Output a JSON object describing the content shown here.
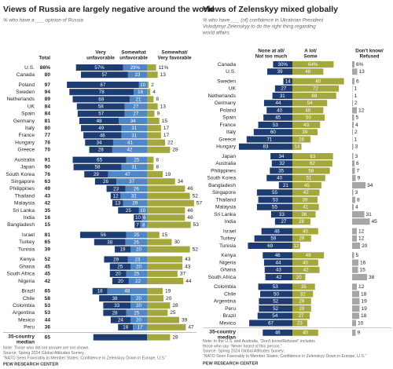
{
  "chart_data": [
    {
      "type": "diverging_bar",
      "title": "Views of Russia are largely negative around the world",
      "subtitle": "% who have a ___ opinion of Russia",
      "column_headers": {
        "total": "Total",
        "very_unfavorable": [
          "Very",
          "unfavorable"
        ],
        "somewhat_unfavorable": [
          "Somewhat",
          "unfavorable"
        ],
        "favorable": [
          "Somewhat/",
          "Very favorable"
        ]
      },
      "colors": {
        "very_unfavorable": "#1d3d72",
        "somewhat_unfavorable": "#4f86c6",
        "favorable": "#a4a83c"
      },
      "groups": [
        [
          {
            "country": "U.S.",
            "total": 86,
            "very_unfavorable": 57,
            "somewhat_unfavorable": 29,
            "favorable": 11,
            "value_labels": {
              "total": "86%",
              "very_unfavorable": "57%",
              "somewhat_unfavorable": "29%",
              "favorable": "11%"
            }
          },
          {
            "country": "Canada",
            "total": 80,
            "very_unfavorable": 57,
            "somewhat_unfavorable": 23,
            "favorable": 13
          }
        ],
        [
          {
            "country": "Poland",
            "total": 97,
            "very_unfavorable": 87,
            "somewhat_unfavorable": 10,
            "favorable": 2
          },
          {
            "country": "Sweden",
            "total": 94,
            "very_unfavorable": 78,
            "somewhat_unfavorable": 16,
            "favorable": 4
          },
          {
            "country": "Netherlands",
            "total": 89,
            "very_unfavorable": 69,
            "somewhat_unfavorable": 21,
            "favorable": 8
          },
          {
            "country": "UK",
            "total": 84,
            "very_unfavorable": 58,
            "somewhat_unfavorable": 27,
            "favorable": 13
          },
          {
            "country": "Spain",
            "total": 84,
            "very_unfavorable": 57,
            "somewhat_unfavorable": 27,
            "favorable": 9
          },
          {
            "country": "Germany",
            "total": 81,
            "very_unfavorable": 48,
            "somewhat_unfavorable": 34,
            "favorable": 15
          },
          {
            "country": "Italy",
            "total": 80,
            "very_unfavorable": 49,
            "somewhat_unfavorable": 31,
            "favorable": 17
          },
          {
            "country": "France",
            "total": 77,
            "very_unfavorable": 46,
            "somewhat_unfavorable": 31,
            "favorable": 17
          },
          {
            "country": "Hungary",
            "total": 76,
            "very_unfavorable": 34,
            "somewhat_unfavorable": 41,
            "favorable": 22
          },
          {
            "country": "Greece",
            "total": 70,
            "very_unfavorable": 28,
            "somewhat_unfavorable": 42,
            "favorable": 28
          }
        ],
        [
          {
            "country": "Australia",
            "total": 91,
            "very_unfavorable": 65,
            "somewhat_unfavorable": 25,
            "favorable": 8
          },
          {
            "country": "Japan",
            "total": 90,
            "very_unfavorable": 58,
            "somewhat_unfavorable": 31,
            "favorable": 8
          },
          {
            "country": "South Korea",
            "total": 76,
            "very_unfavorable": 29,
            "somewhat_unfavorable": 47,
            "favorable": 19
          },
          {
            "country": "Singapore",
            "total": 63,
            "very_unfavorable": 26,
            "somewhat_unfavorable": 37,
            "favorable": 34
          },
          {
            "country": "Philippines",
            "total": 49,
            "very_unfavorable": 23,
            "somewhat_unfavorable": 26,
            "favorable": 46
          },
          {
            "country": "Thailand",
            "total": 43,
            "very_unfavorable": 12,
            "somewhat_unfavorable": 32,
            "favorable": 52
          },
          {
            "country": "Malaysia",
            "total": 42,
            "very_unfavorable": 13,
            "somewhat_unfavorable": 29,
            "favorable": 57
          },
          {
            "country": "Sri Lanka",
            "total": 35,
            "very_unfavorable": 25,
            "somewhat_unfavorable": 10,
            "favorable": 46
          },
          {
            "country": "India",
            "total": 16,
            "very_unfavorable": 10,
            "somewhat_unfavorable": 6,
            "favorable": 46
          },
          {
            "country": "Bangladesh",
            "total": 15,
            "very_unfavorable": 7,
            "somewhat_unfavorable": 8,
            "favorable": 53
          }
        ],
        [
          {
            "country": "Israel",
            "total": 81,
            "very_unfavorable": 56,
            "somewhat_unfavorable": 25,
            "favorable": 15
          },
          {
            "country": "Turkey",
            "total": 65,
            "very_unfavorable": 38,
            "somewhat_unfavorable": 26,
            "favorable": 30
          },
          {
            "country": "Tunisia",
            "total": 39,
            "very_unfavorable": 19,
            "somewhat_unfavorable": 20,
            "favorable": 52
          }
        ],
        [
          {
            "country": "Kenya",
            "total": 52,
            "very_unfavorable": 29,
            "somewhat_unfavorable": 23,
            "favorable": 43
          },
          {
            "country": "Ghana",
            "total": 45,
            "very_unfavorable": 25,
            "somewhat_unfavorable": 20,
            "favorable": 43
          },
          {
            "country": "South Africa",
            "total": 45,
            "very_unfavorable": 20,
            "somewhat_unfavorable": 25,
            "favorable": 37
          },
          {
            "country": "Nigeria",
            "total": 42,
            "very_unfavorable": 20,
            "somewhat_unfavorable": 22,
            "favorable": 44
          }
        ],
        [
          {
            "country": "Brazil",
            "total": 65,
            "very_unfavorable": 18,
            "somewhat_unfavorable": 48,
            "favorable": 19
          },
          {
            "country": "Chile",
            "total": 58,
            "very_unfavorable": 38,
            "somewhat_unfavorable": 20,
            "favorable": 20
          },
          {
            "country": "Colombia",
            "total": 53,
            "very_unfavorable": 33,
            "somewhat_unfavorable": 20,
            "favorable": 28
          },
          {
            "country": "Argentina",
            "total": 53,
            "very_unfavorable": 28,
            "somewhat_unfavorable": 25,
            "favorable": 25
          },
          {
            "country": "Mexico",
            "total": 44,
            "very_unfavorable": 24,
            "somewhat_unfavorable": 20,
            "favorable": 39
          },
          {
            "country": "Peru",
            "total": 36,
            "very_unfavorable": 18,
            "somewhat_unfavorable": 17,
            "favorable": 47
          }
        ]
      ],
      "median": {
        "label": [
          "35-country",
          "median"
        ],
        "total": 65,
        "favorable": 28
      },
      "notes": [
        "Note: Those who did not answer are not shown.",
        "Source: Spring 2024 Global Attitudes Survey.",
        "“NATO Seen Favorably in Member States; Confidence in Zelenskyy Down in Europe, U.S.”"
      ],
      "credit": "PEW RESEARCH CENTER"
    },
    {
      "type": "diverging_bar",
      "title": "Views of Zelenskyy mixed globally",
      "subtitle": [
        "% who have ___ (of) confidence in Ukrainian President",
        "Volodymyr Zelenskyy to do the right thing regarding",
        "world affairs"
      ],
      "column_headers": {
        "no_confidence": [
          "None at all/",
          "Not too much"
        ],
        "confidence": [
          "A lot/",
          "Some"
        ],
        "dont_know": [
          "Don't know/",
          "Refused"
        ]
      },
      "colors": {
        "no_confidence": "#1d3d72",
        "confidence": "#a4a83c",
        "dont_know": "#a6a6a6"
      },
      "groups": [
        [
          {
            "country": "Canada",
            "no_confidence": 30,
            "confidence": 64,
            "dont_know": 6,
            "value_labels": {
              "no_confidence": "30%",
              "confidence": "64%",
              "dont_know": "6%"
            }
          },
          {
            "country": "U.S.",
            "no_confidence": 39,
            "confidence": 48,
            "dont_know": 13
          }
        ],
        [
          {
            "country": "Sweden",
            "no_confidence": 14,
            "confidence": 80,
            "dont_know": 6
          },
          {
            "country": "UK",
            "no_confidence": 27,
            "confidence": 72,
            "dont_know": 1
          },
          {
            "country": "Netherlands",
            "no_confidence": 31,
            "confidence": 68,
            "dont_know": 1
          },
          {
            "country": "Germany",
            "no_confidence": 44,
            "confidence": 54,
            "dont_know": 2
          },
          {
            "country": "Poland",
            "no_confidence": 40,
            "confidence": 48,
            "dont_know": 12
          },
          {
            "country": "Spain",
            "no_confidence": 45,
            "confidence": 50,
            "dont_know": 5
          },
          {
            "country": "France",
            "no_confidence": 53,
            "confidence": 43,
            "dont_know": 4
          },
          {
            "country": "Italy",
            "no_confidence": 60,
            "confidence": 39,
            "dont_know": 2
          },
          {
            "country": "Greece",
            "no_confidence": 71,
            "confidence": 28,
            "dont_know": 1
          },
          {
            "country": "Hungary",
            "no_confidence": 83,
            "confidence": 14,
            "dont_know": 3
          }
        ],
        [
          {
            "country": "Japan",
            "no_confidence": 34,
            "confidence": 63,
            "dont_know": 3
          },
          {
            "country": "Australia",
            "no_confidence": 32,
            "confidence": 62,
            "dont_know": 6
          },
          {
            "country": "Philippines",
            "no_confidence": 35,
            "confidence": 58,
            "dont_know": 7
          },
          {
            "country": "South Korea",
            "no_confidence": 40,
            "confidence": 51,
            "dont_know": 9
          },
          {
            "country": "Bangladesh",
            "no_confidence": 21,
            "confidence": 45,
            "dont_know": 34
          },
          {
            "country": "Singapore",
            "no_confidence": 55,
            "confidence": 42,
            "dont_know": 3
          },
          {
            "country": "Thailand",
            "no_confidence": 53,
            "confidence": 39,
            "dont_know": 8
          },
          {
            "country": "Malaysia",
            "no_confidence": 55,
            "confidence": 41,
            "dont_know": 4
          },
          {
            "country": "Sri Lanka",
            "no_confidence": 33,
            "confidence": 36,
            "dont_know": 31
          },
          {
            "country": "India",
            "no_confidence": 27,
            "confidence": 28,
            "dont_know": 45
          }
        ],
        [
          {
            "country": "Israel",
            "no_confidence": 48,
            "confidence": 40,
            "dont_know": 12
          },
          {
            "country": "Turkey",
            "no_confidence": 59,
            "confidence": 29,
            "dont_know": 12
          },
          {
            "country": "Tunisia",
            "no_confidence": 69,
            "confidence": 12,
            "dont_know": 20
          }
        ],
        [
          {
            "country": "Kenya",
            "no_confidence": 46,
            "confidence": 49,
            "dont_know": 5
          },
          {
            "country": "Nigeria",
            "no_confidence": 44,
            "confidence": 40,
            "dont_know": 16
          },
          {
            "country": "Ghana",
            "no_confidence": 43,
            "confidence": 42,
            "dont_know": 15
          },
          {
            "country": "South Africa",
            "no_confidence": 42,
            "confidence": 20,
            "dont_know": 38
          }
        ],
        [
          {
            "country": "Colombia",
            "no_confidence": 53,
            "confidence": 35,
            "dont_know": 12
          },
          {
            "country": "Chile",
            "no_confidence": 50,
            "confidence": 32,
            "dont_know": 18
          },
          {
            "country": "Argentina",
            "no_confidence": 52,
            "confidence": 29,
            "dont_know": 19
          },
          {
            "country": "Peru",
            "no_confidence": 52,
            "confidence": 29,
            "dont_know": 19
          },
          {
            "country": "Brazil",
            "no_confidence": 54,
            "confidence": 27,
            "dont_know": 18
          },
          {
            "country": "Mexico",
            "no_confidence": 67,
            "confidence": 23,
            "dont_know": 10
          }
        ]
      ],
      "median": {
        "label": [
          "35-country",
          "median"
        ],
        "no_confidence": 46,
        "confidence": 40,
        "dont_know": 9
      },
      "notes": [
        "Note: In the U.S. and Australia, “Don't know/Refused” includes",
        "those who say “Never heard of this person.”",
        "Source: Spring 2024 Global Attitudes Survey.",
        "“NATO Seen Favorably in Member States; Confidence in Zelenskyy Down in Europe, U.S.”"
      ],
      "credit": "PEW RESEARCH CENTER"
    }
  ]
}
